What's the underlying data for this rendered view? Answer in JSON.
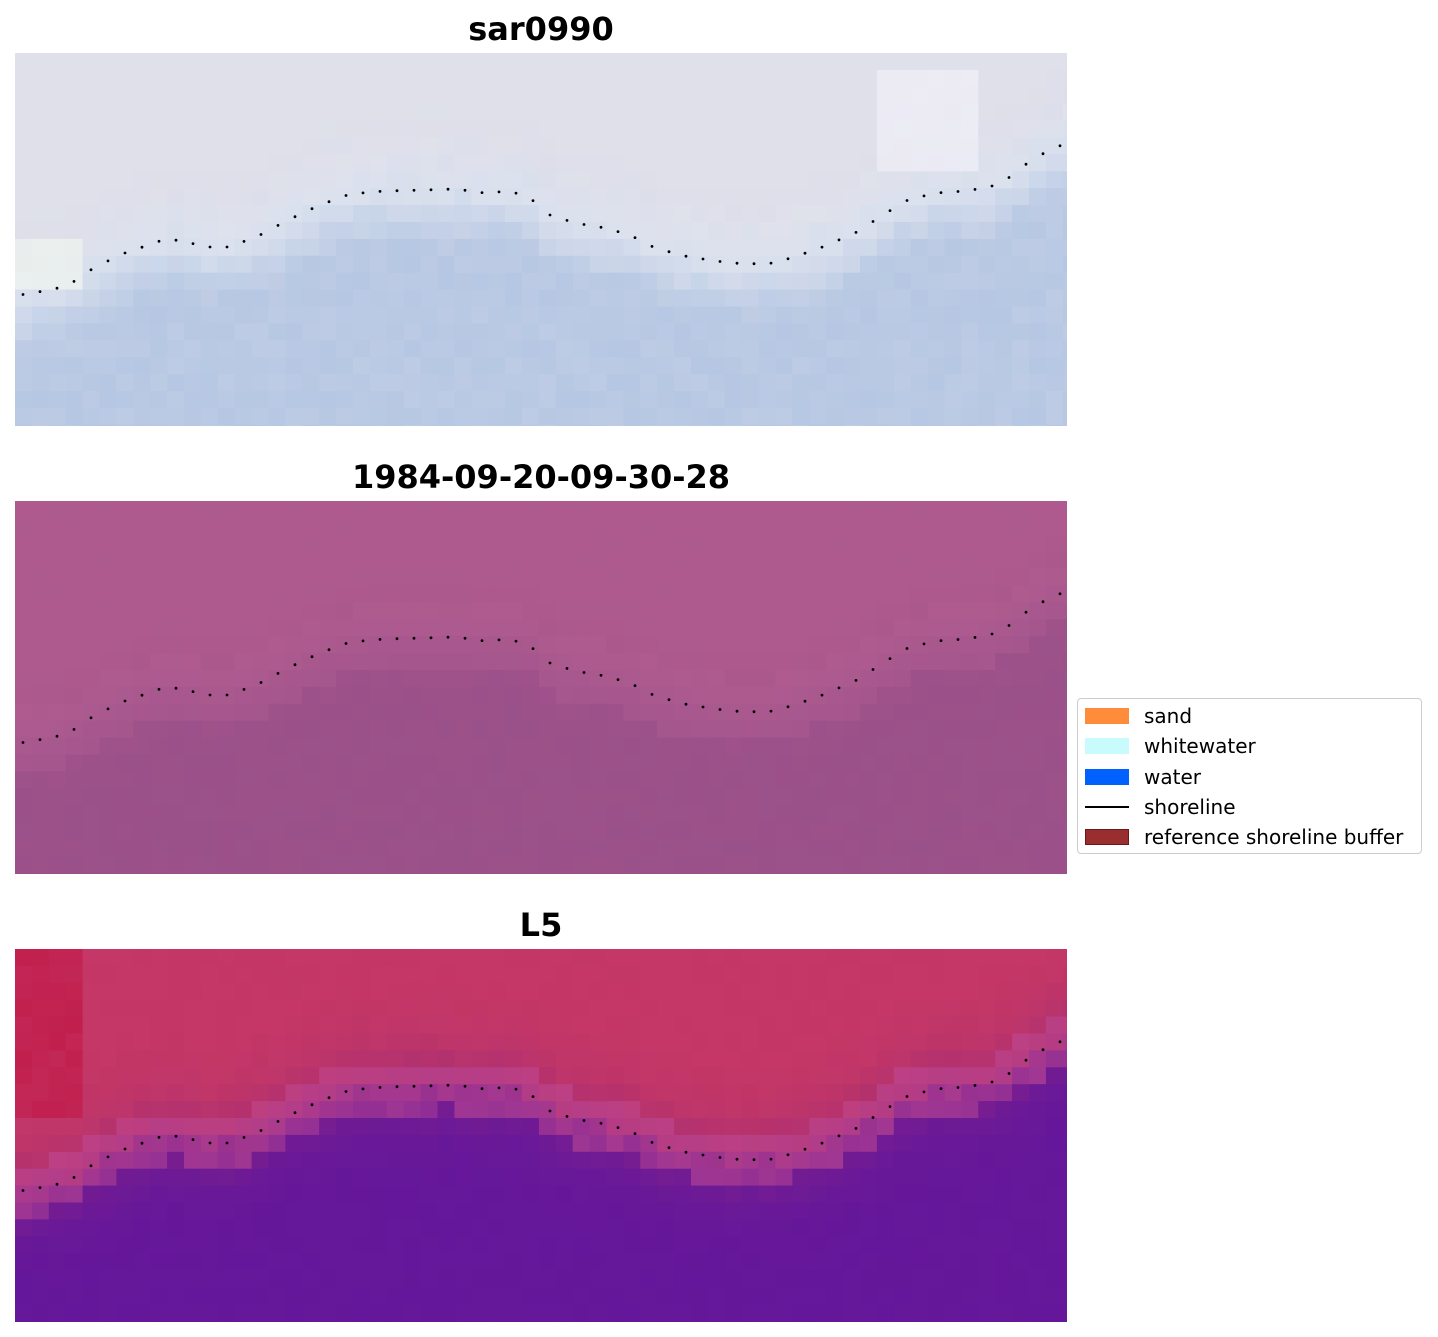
{
  "panels": [
    {
      "title": "sar0990",
      "style": "sar"
    },
    {
      "title": "1984-09-20-09-30-28",
      "style": "rgb"
    },
    {
      "title": "L5",
      "style": "index"
    }
  ],
  "legend": {
    "items": [
      {
        "label": "sand",
        "kind": "patch",
        "color": "#ff8c3a"
      },
      {
        "label": "whitewater",
        "kind": "patch",
        "color": "#c8fcfc"
      },
      {
        "label": "water",
        "kind": "patch",
        "color": "#0061ff"
      },
      {
        "label": "shoreline",
        "kind": "line",
        "color": "#000000"
      },
      {
        "label": "reference shoreline buffer",
        "kind": "patch",
        "color": "#9a2d2d"
      }
    ]
  },
  "colors": {
    "shoreline_dots": "#000000",
    "sar_land": "#dfe0ea",
    "sar_water": "#b5c7e3",
    "rgb_land": "#ae5a8e",
    "rgb_water": "#9a5089",
    "index_land": "#c33665",
    "index_water": "#66189a"
  }
}
